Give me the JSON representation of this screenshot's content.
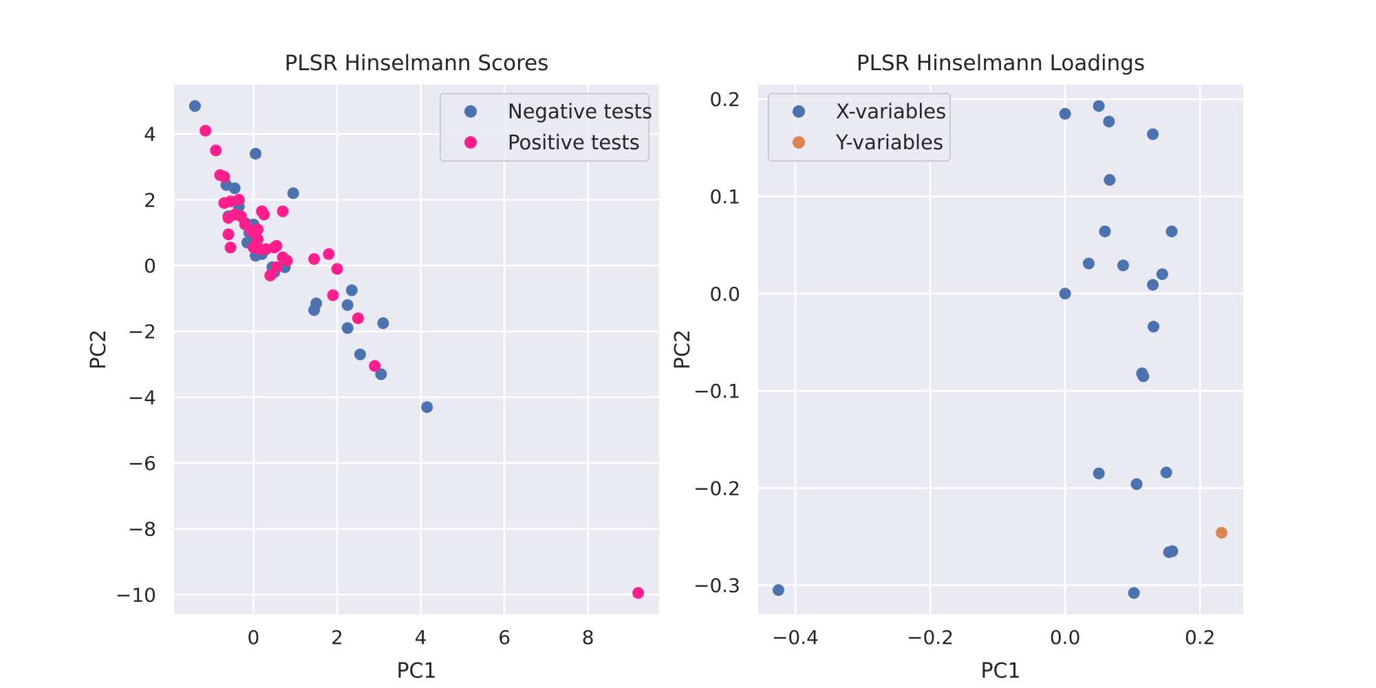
{
  "chart_data": [
    {
      "type": "scatter",
      "title": "PLSR Hinselmann Scores",
      "xlabel": "PC1",
      "ylabel": "PC2",
      "xlim": [
        -1.9,
        9.7
      ],
      "ylim": [
        -10.6,
        5.5
      ],
      "xticks": [
        0,
        2,
        4,
        6,
        8
      ],
      "yticks": [
        4,
        2,
        0,
        -2,
        -4,
        -6,
        -8,
        -10
      ],
      "xtick_labels": [
        "0",
        "2",
        "4",
        "6",
        "8"
      ],
      "ytick_labels": [
        "4",
        "2",
        "0",
        "−2",
        "−4",
        "−6",
        "−8",
        "−10"
      ],
      "grid": true,
      "legend_position": "upper right",
      "series": [
        {
          "name": "Negative tests",
          "color": "#4c72b0",
          "points": [
            [
              -1.4,
              4.85
            ],
            [
              0.05,
              3.4
            ],
            [
              0.95,
              2.2
            ],
            [
              -0.65,
              2.45
            ],
            [
              -0.45,
              2.35
            ],
            [
              -0.35,
              1.8
            ],
            [
              -0.6,
              1.5
            ],
            [
              -0.2,
              1.3
            ],
            [
              0.0,
              1.25
            ],
            [
              -0.1,
              1.0
            ],
            [
              0.05,
              0.8
            ],
            [
              -0.15,
              0.7
            ],
            [
              0.05,
              0.3
            ],
            [
              0.2,
              0.35
            ],
            [
              0.45,
              -0.05
            ],
            [
              0.5,
              -0.2
            ],
            [
              0.75,
              -0.05
            ],
            [
              2.35,
              -0.75
            ],
            [
              1.5,
              -1.15
            ],
            [
              1.45,
              -1.35
            ],
            [
              2.25,
              -1.2
            ],
            [
              3.1,
              -1.75
            ],
            [
              2.25,
              -1.9
            ],
            [
              2.55,
              -2.7
            ],
            [
              3.05,
              -3.3
            ],
            [
              4.15,
              -4.3
            ]
          ]
        },
        {
          "name": "Positive tests",
          "color": "#ff1f8c",
          "points": [
            [
              -1.15,
              4.1
            ],
            [
              -0.9,
              3.5
            ],
            [
              -0.8,
              2.75
            ],
            [
              -0.7,
              2.7
            ],
            [
              -0.7,
              1.9
            ],
            [
              -0.55,
              1.95
            ],
            [
              -0.35,
              2.0
            ],
            [
              -0.3,
              1.5
            ],
            [
              -0.6,
              1.45
            ],
            [
              -0.45,
              1.55
            ],
            [
              -0.2,
              1.25
            ],
            [
              0.2,
              1.65
            ],
            [
              0.25,
              1.55
            ],
            [
              0.7,
              1.65
            ],
            [
              -0.05,
              1.05
            ],
            [
              0.1,
              1.1
            ],
            [
              0.1,
              0.8
            ],
            [
              0.0,
              0.55
            ],
            [
              0.15,
              0.5
            ],
            [
              0.3,
              0.5
            ],
            [
              0.5,
              0.55
            ],
            [
              0.55,
              0.6
            ],
            [
              0.7,
              0.25
            ],
            [
              0.8,
              0.15
            ],
            [
              0.55,
              -0.05
            ],
            [
              0.4,
              -0.3
            ],
            [
              -0.6,
              0.95
            ],
            [
              -0.55,
              0.55
            ],
            [
              1.45,
              0.2
            ],
            [
              1.8,
              0.35
            ],
            [
              2.0,
              -0.1
            ],
            [
              1.9,
              -0.9
            ],
            [
              2.5,
              -1.6
            ],
            [
              2.9,
              -3.05
            ],
            [
              9.2,
              -9.95
            ]
          ]
        }
      ]
    },
    {
      "type": "scatter",
      "title": "PLSR Hinselmann Loadings",
      "xlabel": "PC1",
      "ylabel": "PC2",
      "xlim": [
        -0.455,
        0.264
      ],
      "ylim": [
        -0.33,
        0.215
      ],
      "xticks": [
        -0.4,
        -0.2,
        0.0,
        0.2
      ],
      "yticks": [
        0.2,
        0.1,
        0.0,
        -0.1,
        -0.2,
        -0.3
      ],
      "xtick_labels": [
        "−0.4",
        "−0.2",
        "0.0",
        "0.2"
      ],
      "ytick_labels": [
        "0.2",
        "0.1",
        "0.0",
        "−0.1",
        "−0.2",
        "−0.3"
      ],
      "grid": true,
      "legend_position": "upper left",
      "series": [
        {
          "name": "X-variables",
          "color": "#4c72b0",
          "points": [
            [
              0.0,
              0.185
            ],
            [
              0.05,
              0.193
            ],
            [
              0.065,
              0.177
            ],
            [
              0.13,
              0.164
            ],
            [
              0.066,
              0.117
            ],
            [
              0.059,
              0.064
            ],
            [
              0.158,
              0.064
            ],
            [
              0.035,
              0.031
            ],
            [
              0.086,
              0.029
            ],
            [
              0.144,
              0.02
            ],
            [
              0.13,
              0.009
            ],
            [
              0.0,
              0.0
            ],
            [
              0.131,
              -0.034
            ],
            [
              0.114,
              -0.082
            ],
            [
              0.116,
              -0.085
            ],
            [
              0.05,
              -0.185
            ],
            [
              0.106,
              -0.196
            ],
            [
              0.15,
              -0.184
            ],
            [
              0.154,
              -0.266
            ],
            [
              0.159,
              -0.265
            ],
            [
              -0.425,
              -0.305
            ],
            [
              0.102,
              -0.308
            ]
          ]
        },
        {
          "name": "Y-variables",
          "color": "#dd8452",
          "points": [
            [
              0.232,
              -0.246
            ]
          ]
        }
      ]
    }
  ]
}
